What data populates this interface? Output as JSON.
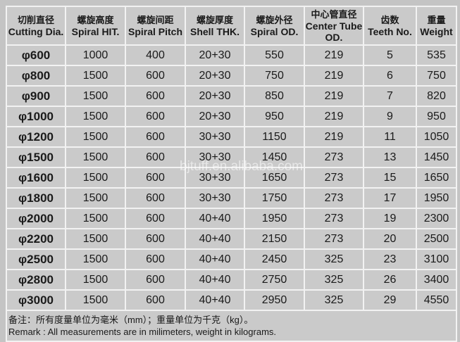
{
  "headers": [
    {
      "zh": "切削直径",
      "en": "Cutting Dia."
    },
    {
      "zh": "螺旋高度",
      "en": "Spiral HIT."
    },
    {
      "zh": "螺旋间距",
      "en": "Spiral Pitch"
    },
    {
      "zh": "螺旋厚度",
      "en": "Shell THK."
    },
    {
      "zh": "螺旋外径",
      "en": "Spiral OD."
    },
    {
      "zh": "中心管直径",
      "en": "Center Tube OD."
    },
    {
      "zh": "齿数",
      "en": "Teeth No."
    },
    {
      "zh": "重量",
      "en": "Weight"
    }
  ],
  "rows": [
    [
      "φ600",
      "1000",
      "400",
      "20+30",
      "550",
      "219",
      "5",
      "535"
    ],
    [
      "φ800",
      "1500",
      "600",
      "20+30",
      "750",
      "219",
      "6",
      "750"
    ],
    [
      "φ900",
      "1500",
      "600",
      "20+30",
      "850",
      "219",
      "7",
      "820"
    ],
    [
      "φ1000",
      "1500",
      "600",
      "20+30",
      "950",
      "219",
      "9",
      "950"
    ],
    [
      "φ1200",
      "1500",
      "600",
      "30+30",
      "1150",
      "219",
      "11",
      "1050"
    ],
    [
      "φ1500",
      "1500",
      "600",
      "30+30",
      "1450",
      "273",
      "13",
      "1450"
    ],
    [
      "φ1600",
      "1500",
      "600",
      "30+30",
      "1650",
      "273",
      "15",
      "1650"
    ],
    [
      "φ1800",
      "1500",
      "600",
      "30+30",
      "1750",
      "273",
      "17",
      "1950"
    ],
    [
      "φ2000",
      "1500",
      "600",
      "40+40",
      "1950",
      "273",
      "19",
      "2300"
    ],
    [
      "φ2200",
      "1500",
      "600",
      "40+40",
      "2150",
      "273",
      "20",
      "2500"
    ],
    [
      "φ2500",
      "1500",
      "600",
      "40+40",
      "2450",
      "325",
      "23",
      "3100"
    ],
    [
      "φ2800",
      "1500",
      "600",
      "40+40",
      "2750",
      "325",
      "26",
      "3400"
    ],
    [
      "φ3000",
      "1500",
      "600",
      "40+40",
      "2950",
      "325",
      "29",
      "4550"
    ]
  ],
  "note": {
    "zh": "备注：所有度量单位为毫米（mm）；重量单位为千克（kg）。",
    "en": "Remark : All measurements are in milimeters, weight in kilograms."
  },
  "watermark": "bjtuff.en.alibaba.com"
}
